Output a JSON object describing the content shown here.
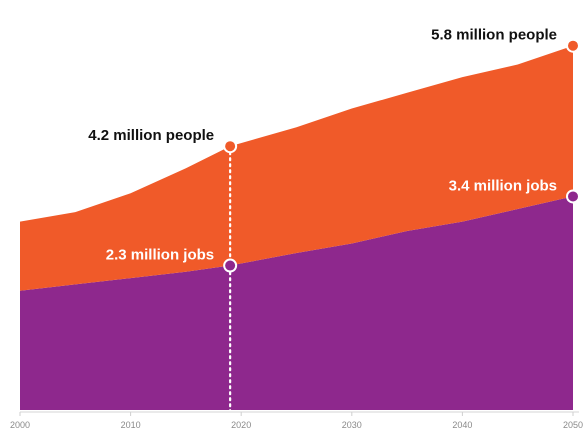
{
  "chart_data": {
    "type": "area",
    "title": "",
    "xlabel": "",
    "ylabel": "",
    "xlim": [
      2000,
      2050
    ],
    "ylim": [
      0,
      6.4
    ],
    "x_ticks": [
      2000,
      2010,
      2020,
      2030,
      2040,
      2050
    ],
    "x_tick_labels": [
      "2000",
      "2010",
      "2020",
      "2030",
      "2040",
      "2050"
    ],
    "grid": false,
    "stacked": true,
    "x": [
      2000,
      2005,
      2010,
      2015,
      2019,
      2025,
      2030,
      2035,
      2040,
      2045,
      2050
    ],
    "series": [
      {
        "name": "",
        "color": "#8e288d",
        "values": [
          1.9,
          2.0,
          2.1,
          2.2,
          2.3,
          2.5,
          2.65,
          2.85,
          3.0,
          3.2,
          3.4
        ]
      },
      {
        "name": "",
        "color": "#f05a29",
        "values": [
          1.1,
          1.15,
          1.35,
          1.65,
          1.9,
          2.0,
          2.15,
          2.2,
          2.3,
          2.3,
          2.4
        ]
      }
    ],
    "annotations": [
      {
        "x": 2019,
        "y": 4.2,
        "text": "4.2 million people",
        "marker_fill": "#f05a29",
        "text_color": "#111111",
        "anchor": "left"
      },
      {
        "x": 2019,
        "y": 2.3,
        "text": "2.3 million jobs",
        "marker_fill": "#8e288d",
        "text_color": "#ffffff",
        "anchor": "left"
      },
      {
        "x": 2050,
        "y": 5.8,
        "text": "5.8 million people",
        "marker_fill": "#f05a29",
        "text_color": "#111111",
        "anchor": "left"
      },
      {
        "x": 2050,
        "y": 3.4,
        "text": "3.4 million jobs",
        "marker_fill": "#8e288d",
        "text_color": "#ffffff",
        "anchor": "left"
      }
    ],
    "reference_line": {
      "x": 2019,
      "style": "dotted",
      "color": "#ffffff"
    }
  }
}
